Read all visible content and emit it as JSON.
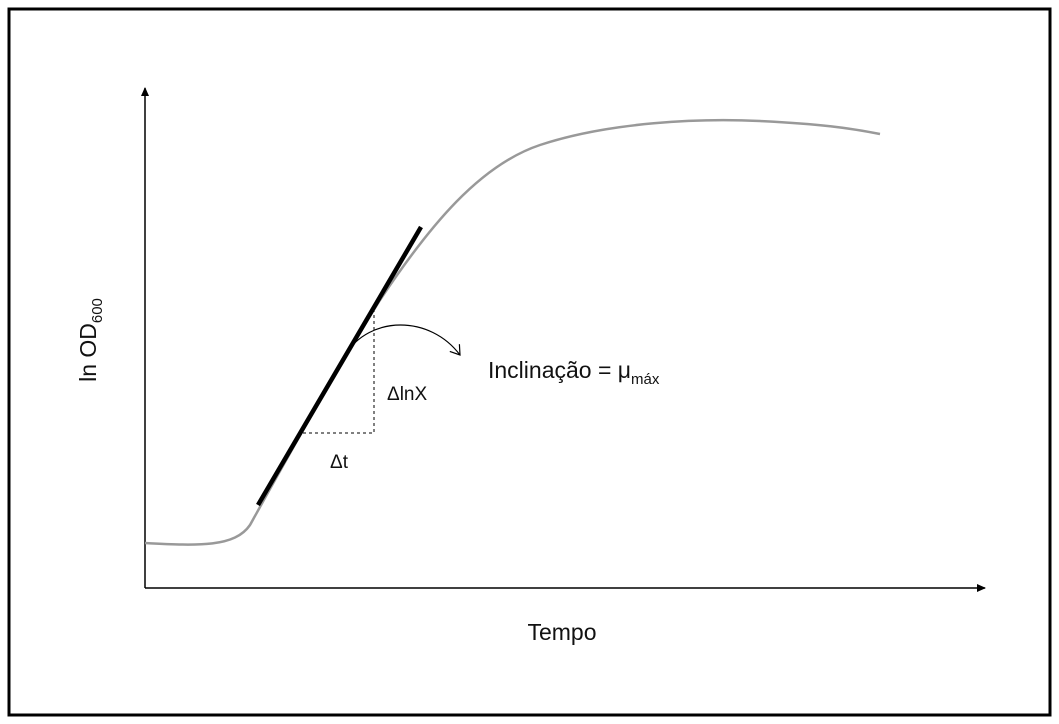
{
  "axes": {
    "y_label": {
      "text": "ln OD",
      "subscript": "600"
    },
    "x_label": "Tempo"
  },
  "annotations": {
    "slope": {
      "text": "Inclinação = μ",
      "subscript": "máx"
    },
    "delta_y": "ΔlnX",
    "delta_x": "Δt"
  }
}
